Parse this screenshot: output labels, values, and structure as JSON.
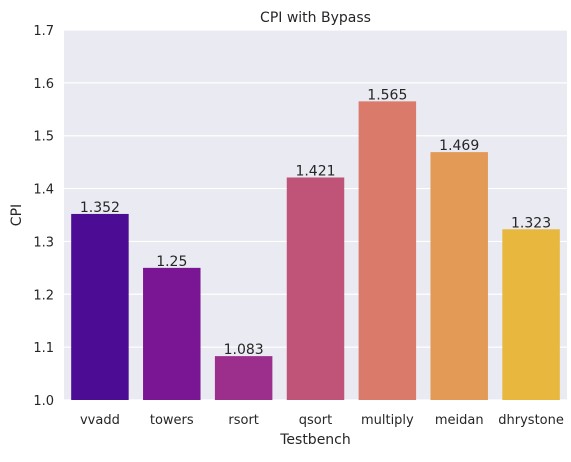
{
  "chart_data": {
    "type": "bar",
    "title": "CPI with Bypass",
    "xlabel": "Testbench",
    "ylabel": "CPI",
    "categories": [
      "vvadd",
      "towers",
      "rsort",
      "qsort",
      "multiply",
      "meidan",
      "dhrystone"
    ],
    "values": [
      1.352,
      1.25,
      1.083,
      1.421,
      1.565,
      1.469,
      1.323
    ],
    "value_labels": [
      "1.352",
      "1.25",
      "1.083",
      "1.421",
      "1.565",
      "1.469",
      "1.323"
    ],
    "ylim": [
      1.0,
      1.7
    ],
    "yticks": [
      1.0,
      1.1,
      1.2,
      1.3,
      1.4,
      1.5,
      1.6,
      1.7
    ],
    "ytick_labels": [
      "1.0",
      "1.1",
      "1.2",
      "1.3",
      "1.4",
      "1.5",
      "1.6",
      "1.7"
    ],
    "grid": true,
    "background_color": "#EAEAF2",
    "bar_colors": [
      "#4C0D94",
      "#7A1693",
      "#9C2E8C",
      "#BF5378",
      "#DA7A6B",
      "#E39A56",
      "#E8B73D"
    ]
  }
}
